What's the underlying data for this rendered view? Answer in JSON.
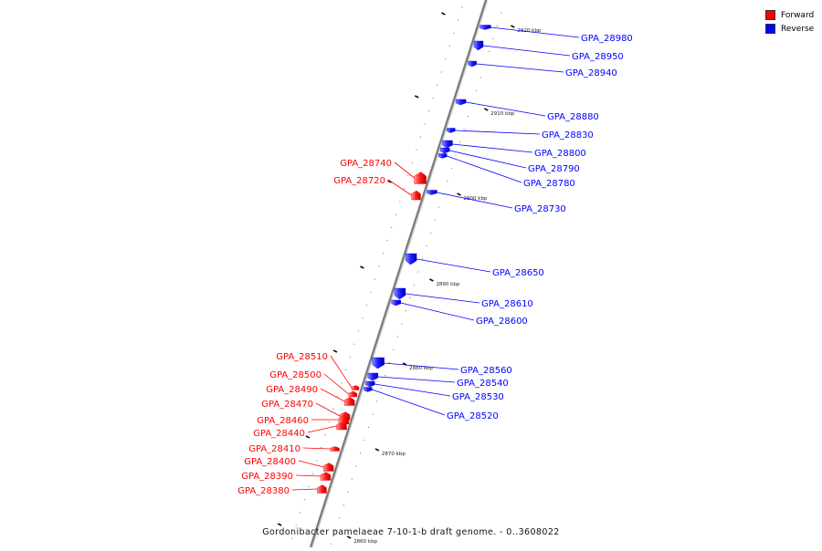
{
  "legend": {
    "items": [
      {
        "label": "Forward",
        "color": "#ff0000"
      },
      {
        "label": "Reverse",
        "color": "#0000ff"
      }
    ]
  },
  "caption": "Gordonibacter pamelaeae 7-10-1-b draft genome. - 0..3608022",
  "axis_ticks": [
    "2920 kbp",
    "2910 kbp",
    "2900 kbp",
    "2890 kbp",
    "2880 kbp",
    "2870 kbp",
    "2860 kbp"
  ],
  "genes": [
    {
      "label": "GPA_28980",
      "strand": "reverse"
    },
    {
      "label": "GPA_28950",
      "strand": "reverse"
    },
    {
      "label": "GPA_28940",
      "strand": "reverse"
    },
    {
      "label": "GPA_28880",
      "strand": "reverse"
    },
    {
      "label": "GPA_28830",
      "strand": "reverse"
    },
    {
      "label": "GPA_28800",
      "strand": "reverse"
    },
    {
      "label": "GPA_28790",
      "strand": "reverse"
    },
    {
      "label": "GPA_28780",
      "strand": "reverse"
    },
    {
      "label": "GPA_28740",
      "strand": "forward"
    },
    {
      "label": "GPA_28720",
      "strand": "forward"
    },
    {
      "label": "GPA_28730",
      "strand": "reverse"
    },
    {
      "label": "GPA_28650",
      "strand": "reverse"
    },
    {
      "label": "GPA_28610",
      "strand": "reverse"
    },
    {
      "label": "GPA_28600",
      "strand": "reverse"
    },
    {
      "label": "GPA_28510",
      "strand": "forward"
    },
    {
      "label": "GPA_28500",
      "strand": "forward"
    },
    {
      "label": "GPA_28490",
      "strand": "forward"
    },
    {
      "label": "GPA_28470",
      "strand": "forward"
    },
    {
      "label": "GPA_28460",
      "strand": "forward"
    },
    {
      "label": "GPA_28440",
      "strand": "forward"
    },
    {
      "label": "GPA_28410",
      "strand": "forward"
    },
    {
      "label": "GPA_28400",
      "strand": "forward"
    },
    {
      "label": "GPA_28390",
      "strand": "forward"
    },
    {
      "label": "GPA_28380",
      "strand": "forward"
    },
    {
      "label": "GPA_28560",
      "strand": "reverse"
    },
    {
      "label": "GPA_28540",
      "strand": "reverse"
    },
    {
      "label": "GPA_28530",
      "strand": "reverse"
    },
    {
      "label": "GPA_28520",
      "strand": "reverse"
    }
  ]
}
